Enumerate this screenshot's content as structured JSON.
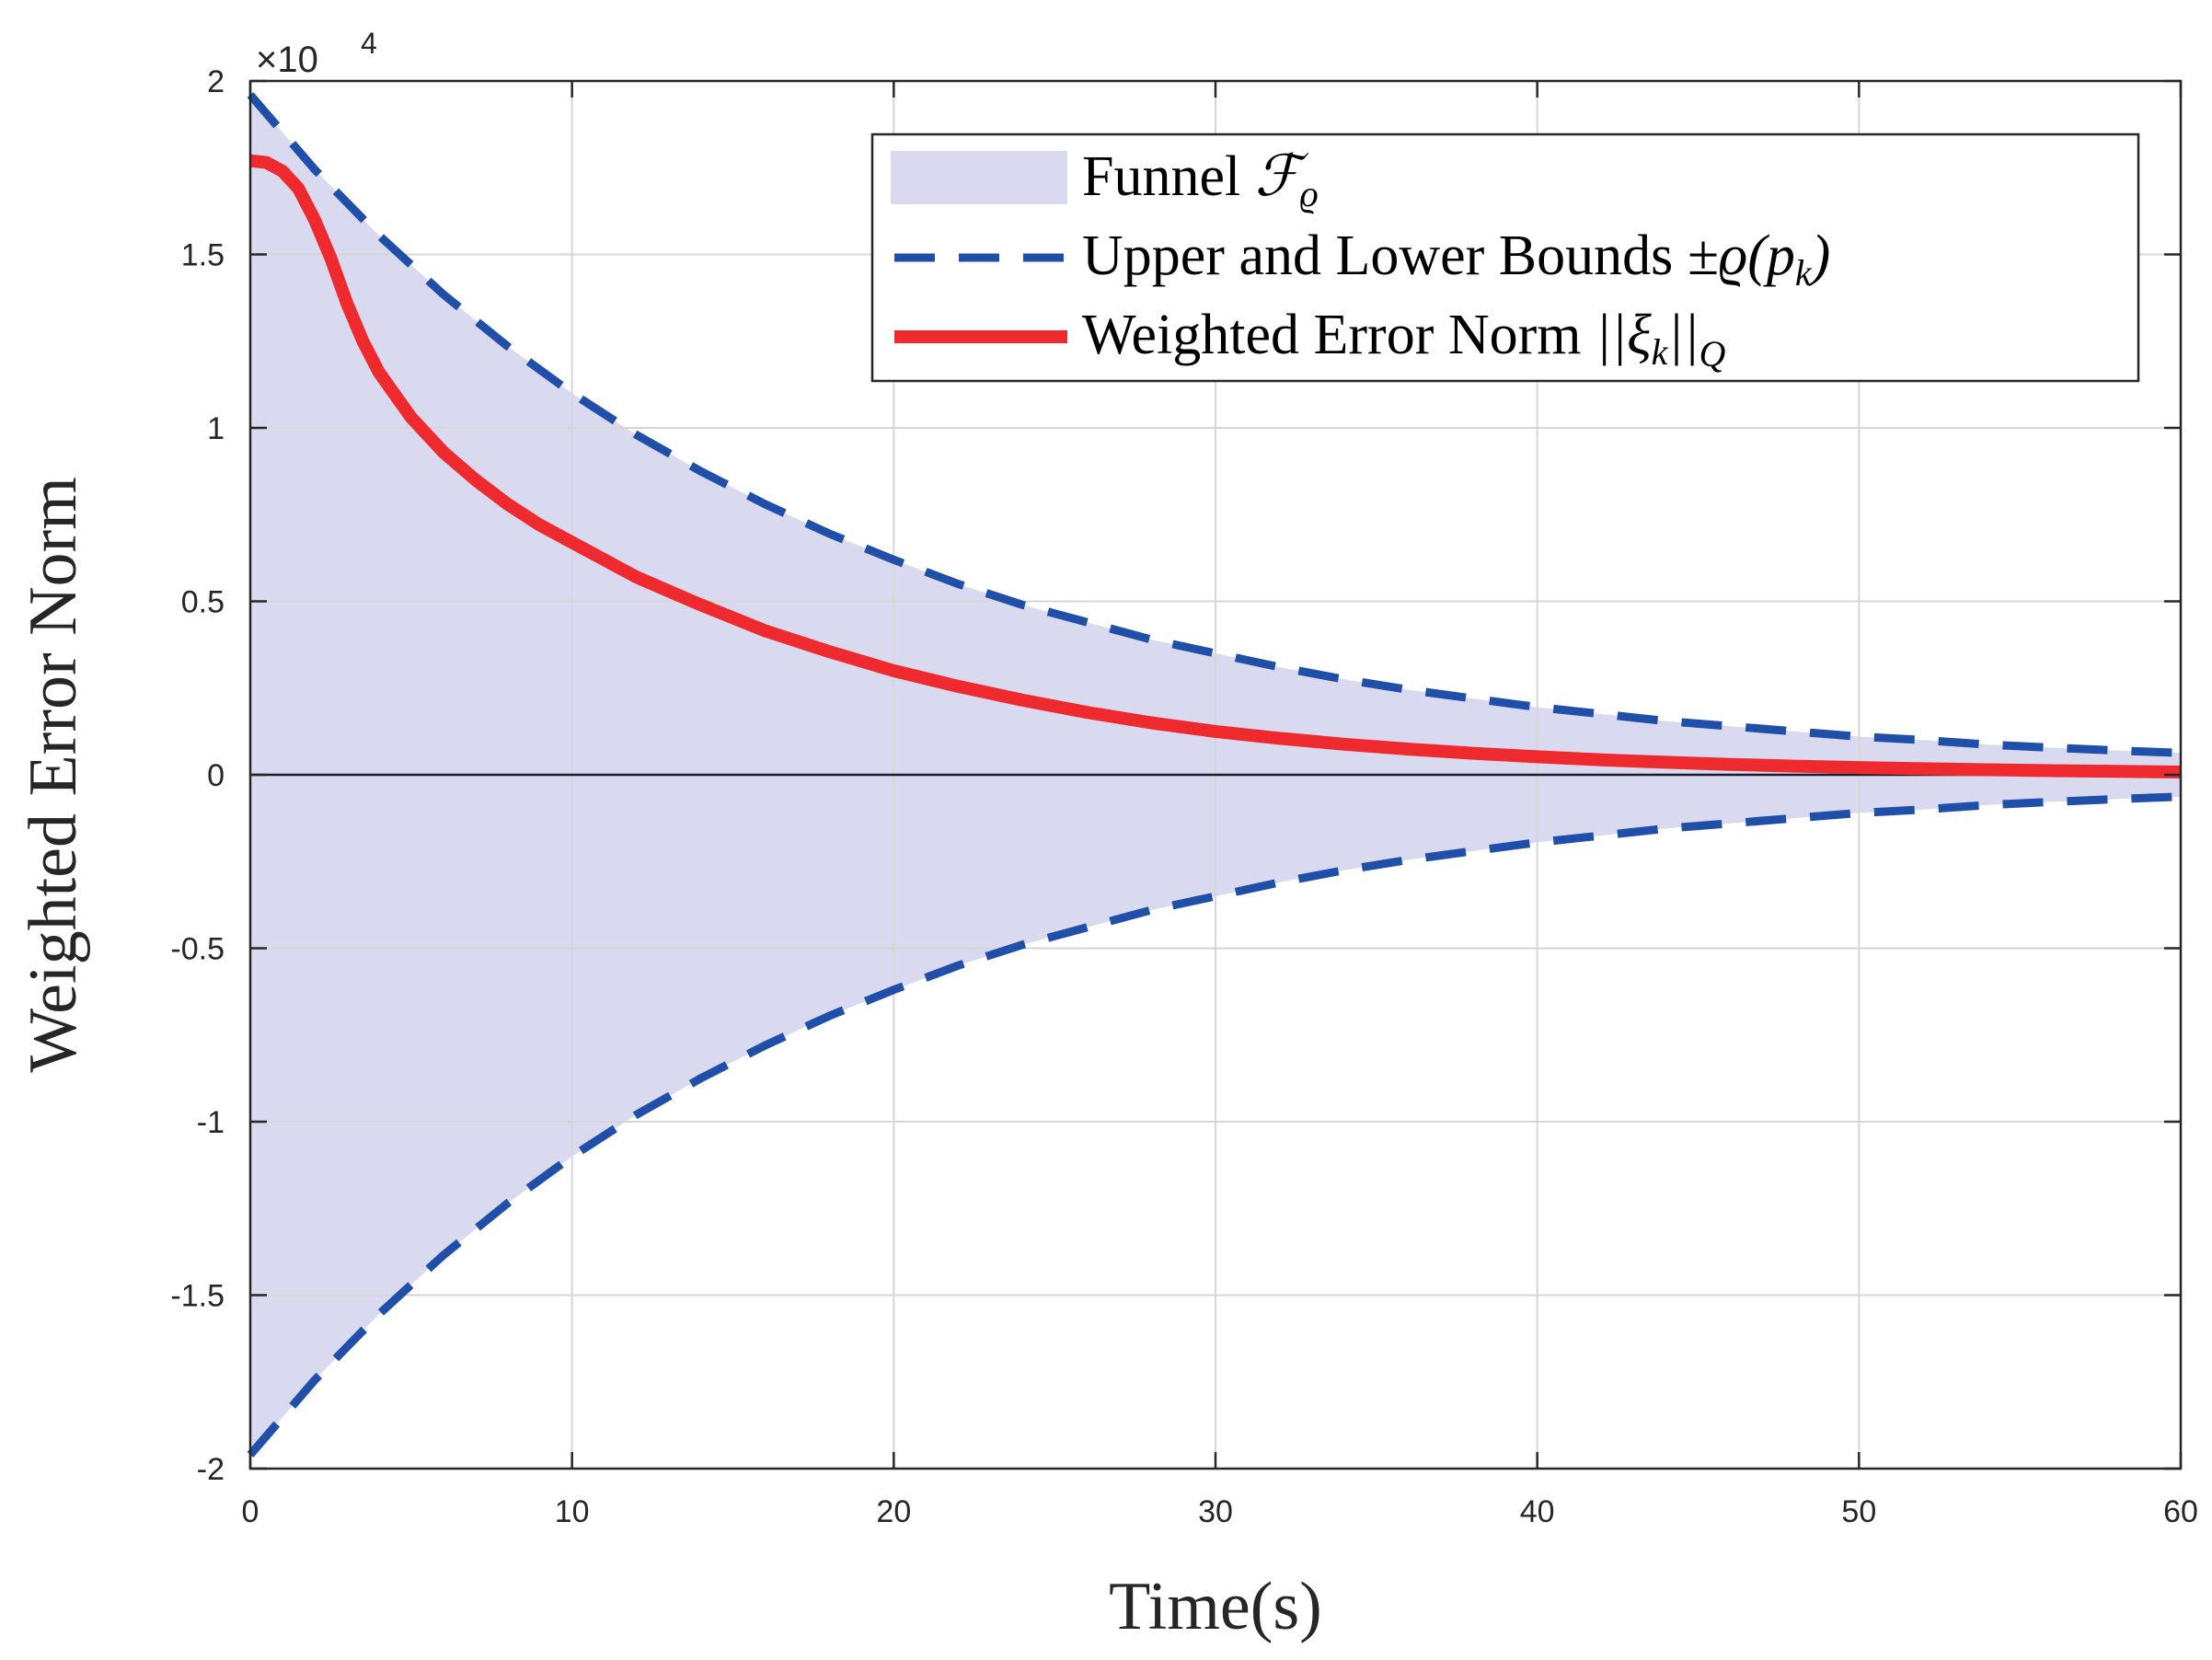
{
  "chart_data": {
    "type": "area",
    "xlabel": "Time(s)",
    "ylabel": "Weighted Error Norm",
    "xlim": [
      0,
      60
    ],
    "ylim": [
      -20000,
      20000
    ],
    "y_exponent": "4",
    "y_exponent_prefix": "×10",
    "xticks": [
      "0",
      "10",
      "20",
      "30",
      "40",
      "50",
      "60"
    ],
    "xtick_values": [
      0,
      10,
      20,
      30,
      40,
      50,
      60
    ],
    "yticks": [
      "-2",
      "-1.5",
      "-1",
      "-0.5",
      "0",
      "0.5",
      "1",
      "1.5",
      "2"
    ],
    "ytick_values": [
      -20000,
      -15000,
      -10000,
      -5000,
      0,
      5000,
      10000,
      15000,
      20000
    ],
    "grid": true,
    "legend_position": "top-right",
    "x": [
      0,
      2,
      4,
      6,
      8,
      10,
      12,
      14,
      16,
      18,
      20,
      22,
      24,
      26,
      28,
      30,
      32,
      34,
      36,
      38,
      40,
      42,
      44,
      46,
      48,
      50,
      52,
      54,
      56,
      58,
      60
    ],
    "series": [
      {
        "name": "Funnel ",
        "math": "ℱ",
        "sub": "ϱ",
        "kind": "fill",
        "color": "#d9daef",
        "upper": [
          19600,
          17450,
          15550,
          13850,
          12350,
          11000,
          9800,
          8750,
          7800,
          6950,
          6200,
          5500,
          4900,
          4400,
          3900,
          3500,
          3100,
          2750,
          2450,
          2200,
          1950,
          1750,
          1550,
          1400,
          1250,
          1100,
          1000,
          870,
          780,
          700,
          630
        ],
        "lower": [
          -19600,
          -17450,
          -15550,
          -13850,
          -12350,
          -11000,
          -9800,
          -8750,
          -7800,
          -6950,
          -6200,
          -5500,
          -4900,
          -4400,
          -3900,
          -3500,
          -3100,
          -2750,
          -2450,
          -2200,
          -1950,
          -1750,
          -1550,
          -1400,
          -1250,
          -1100,
          -1000,
          -870,
          -780,
          -700,
          -630
        ]
      },
      {
        "name": "Upper and Lower Bounds ",
        "math": "±ϱ(p",
        "sub": "k",
        "math_end": ")",
        "kind": "dashed",
        "color": "#1f4fa8",
        "values": [
          19600,
          17450,
          15550,
          13850,
          12350,
          11000,
          9800,
          8750,
          7800,
          6950,
          6200,
          5500,
          4900,
          4400,
          3900,
          3500,
          3100,
          2750,
          2450,
          2200,
          1950,
          1750,
          1550,
          1400,
          1250,
          1100,
          1000,
          870,
          780,
          700,
          630
        ]
      },
      {
        "name": "Weighted Error Norm ",
        "math": "||ξ",
        "sub": "k",
        "math_end": "||",
        "sub2": "Q",
        "kind": "solid",
        "color": "#ee2a2e",
        "x": [
          0,
          0.5,
          1,
          1.5,
          2,
          2.5,
          3,
          3.5,
          4,
          5,
          6,
          7,
          8,
          9,
          10,
          12,
          14,
          16,
          18,
          20,
          22,
          24,
          26,
          28,
          30,
          32,
          34,
          36,
          38,
          40,
          42,
          44,
          46,
          48,
          50,
          52,
          54,
          56,
          58,
          60
        ],
        "values": [
          17700,
          17650,
          17400,
          16900,
          16000,
          14900,
          13600,
          12500,
          11600,
          10300,
          9300,
          8500,
          7800,
          7200,
          6700,
          5700,
          4900,
          4150,
          3550,
          3000,
          2550,
          2150,
          1800,
          1500,
          1250,
          1050,
          880,
          740,
          620,
          520,
          430,
          360,
          300,
          250,
          210,
          175,
          145,
          120,
          100,
          80
        ]
      }
    ]
  }
}
